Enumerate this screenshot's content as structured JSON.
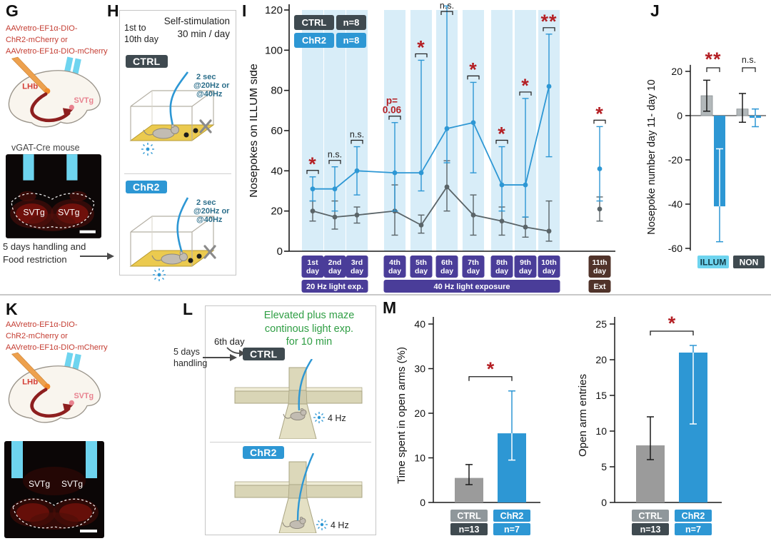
{
  "colors": {
    "ctrl_dark": "#3f4a50",
    "ctrl_line": "#5a6468",
    "ctrl_gray": "#b2b8ba",
    "ctrl_bar": "#9b9b9b",
    "ctrl_mid": "#8f979b",
    "chr2_blue": "#2d97d4",
    "band_blue": "#d8edf8",
    "purple": "#4a3d99",
    "brown": "#50332a",
    "sig_red": "#b41f24",
    "fiber_cyan": "#6ed4ef",
    "virus_red": "#c43c31",
    "green": "#2f9e44",
    "floor_yellow": "#ebca4f"
  },
  "panels": {
    "g": {
      "label": "G",
      "virus_lines": [
        "AAVretro-EF1α-DIO-",
        "ChR2-mCherry or",
        "AAVretro-EF1α-DIO-mCherry"
      ],
      "lhb": "LHb",
      "svtg": "SVTg",
      "mouse": "vGAT-Cre mouse",
      "hist_left": "SVTg",
      "hist_right": "SVTg",
      "note_line1": "5 days handling and",
      "note_line2": "Food restriction"
    },
    "h": {
      "label": "H",
      "title1": "Self-stimulation",
      "title2": "30 min / day",
      "day_range1": "1st to",
      "day_range2": "10th day",
      "ctrl": "CTRL",
      "chr2": "ChR2",
      "stim1": "2 sec",
      "stim2": "@20Hz or",
      "stim3": "@40Hz"
    },
    "k": {
      "label": "K",
      "virus_lines": [
        "AAVretro-EF1α-DIO-",
        "ChR2-mCherry or",
        "AAVretro-EF1α-DIO-mCherry"
      ],
      "lhb": "LHb",
      "svtg": "SVTg",
      "hist_left": "SVTg",
      "hist_right": "SVTg"
    },
    "l": {
      "label": "L",
      "title_lines": [
        "Elevated plus maze",
        "continous light exp.",
        "for 10 min"
      ],
      "day": "6th day",
      "handling1": "5 days",
      "handling2": "handling",
      "ctrl": "CTRL",
      "chr2": "ChR2",
      "hz": "4 Hz"
    }
  },
  "chart_data": {
    "panel_i": {
      "label": "I",
      "type": "line",
      "ylabel": "Nosepokes on ILLUM side",
      "ylim": [
        0,
        120
      ],
      "yticks": [
        0,
        20,
        40,
        60,
        80,
        100,
        120
      ],
      "grid": false,
      "legend_position": "top-left",
      "legend": [
        {
          "name": "CTRL",
          "n": "n=8"
        },
        {
          "name": "ChR2",
          "n": "n=8"
        }
      ],
      "light_days": [
        0,
        1,
        2,
        3,
        4,
        5,
        6,
        7,
        8,
        9
      ],
      "day_labels": [
        [
          "1st",
          "day"
        ],
        [
          "2nd",
          "day"
        ],
        [
          "3rd",
          "day"
        ],
        [
          "4th",
          "day"
        ],
        [
          "5th",
          "day"
        ],
        [
          "6th",
          "day"
        ],
        [
          "7th",
          "day"
        ],
        [
          "8th",
          "day"
        ],
        [
          "9th",
          "day"
        ],
        [
          "10th",
          "day"
        ],
        [
          "11th",
          "day"
        ]
      ],
      "series": [
        {
          "name": "CTRL",
          "values": [
            20,
            17,
            18,
            20,
            13,
            32,
            18,
            15,
            12,
            10,
            21
          ],
          "err_lo": [
            15,
            11,
            14,
            8,
            9,
            20,
            8,
            8,
            7,
            5,
            15
          ],
          "err_hi": [
            25,
            25,
            22,
            33,
            18,
            45,
            28,
            22,
            17,
            25,
            27
          ]
        },
        {
          "name": "ChR2",
          "values": [
            31,
            31,
            40,
            39,
            39,
            61,
            64,
            33,
            33,
            82,
            41
          ],
          "err_lo": [
            25,
            20,
            28,
            20,
            30,
            44,
            39,
            20,
            17,
            47,
            25
          ],
          "err_hi": [
            37,
            42,
            52,
            64,
            95,
            122,
            84,
            52,
            76,
            108,
            62
          ]
        }
      ],
      "sig": [
        [
          "*"
        ],
        [
          "n.s."
        ],
        [
          "n.s."
        ],
        [
          "p=",
          "0.06"
        ],
        [
          "*"
        ],
        [
          "n.s."
        ],
        [
          "*"
        ],
        [
          "*"
        ],
        [
          "*"
        ],
        [
          "**"
        ],
        [
          "*"
        ]
      ],
      "axis_groups": [
        {
          "label": "20 Hz light exp.",
          "from": 0,
          "to": 2,
          "color": "purple"
        },
        {
          "label": "40 Hz light exposure",
          "from": 3,
          "to": 9,
          "color": "purple"
        },
        {
          "label": "Ext",
          "from": 10,
          "to": 10,
          "color": "brown"
        }
      ]
    },
    "panel_j": {
      "label": "J",
      "type": "bar",
      "ylabel": "Nosepoke number day 11- day 10",
      "ylim": [
        -60,
        20
      ],
      "yticks": [
        20,
        0,
        -20,
        -40,
        -60
      ],
      "groups": [
        {
          "label": "ILLUM",
          "style": "cyan",
          "sig": "**",
          "bars": [
            {
              "name": "CTRL",
              "value": 9,
              "err_lo": 2,
              "err_hi": 16
            },
            {
              "name": "ChR2",
              "value": -41,
              "err_lo": -57,
              "err_hi": -15
            }
          ]
        },
        {
          "label": "NON",
          "style": "dark",
          "sig": "n.s.",
          "bars": [
            {
              "name": "CTRL",
              "value": 3,
              "err_lo": -3,
              "err_hi": 10
            },
            {
              "name": "ChR2",
              "value": -1,
              "err_lo": -5,
              "err_hi": 3
            }
          ]
        }
      ]
    },
    "panel_m": {
      "label": "M",
      "charts": [
        {
          "type": "bar",
          "ylabel": "Time spent in open arms (%)",
          "ylim": [
            0,
            40
          ],
          "yticks": [
            0,
            10,
            20,
            30,
            40
          ],
          "sig": "*",
          "bars": [
            {
              "name": "CTRL",
              "n": "n=13",
              "value": 5.5,
              "err_lo": 4,
              "err_hi": 8.5
            },
            {
              "name": "ChR2",
              "n": "n=7",
              "value": 15.5,
              "err_lo": 9.5,
              "err_hi": 25
            }
          ]
        },
        {
          "type": "bar",
          "ylabel": "Open arm entries",
          "ylim": [
            0,
            25
          ],
          "yticks": [
            0,
            5,
            10,
            15,
            20,
            25
          ],
          "sig": "*",
          "bars": [
            {
              "name": "CTRL",
              "n": "n=13",
              "value": 8,
              "err_lo": 6,
              "err_hi": 12
            },
            {
              "name": "ChR2",
              "n": "n=7",
              "value": 21,
              "err_lo": 11,
              "err_hi": 22
            }
          ]
        }
      ]
    }
  }
}
